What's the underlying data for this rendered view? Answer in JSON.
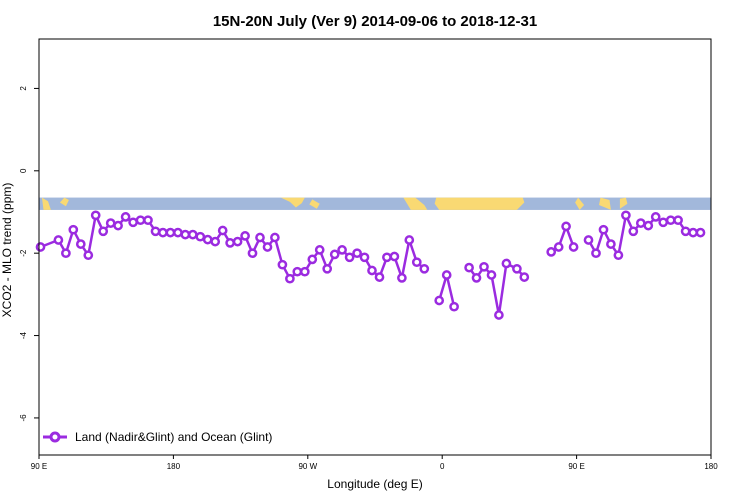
{
  "chart_data": {
    "type": "line",
    "title": "15N-20N July (Ver 9)   2014-09-06 to 2018-12-31",
    "xlabel": "Longitude (deg E)",
    "ylabel": "XCO2 - MLO trend (ppm)",
    "x_ticks": [
      {
        "value": 90,
        "label": "90 E"
      },
      {
        "value": 180,
        "label": "180"
      },
      {
        "value": 270,
        "label": "90 W"
      },
      {
        "value": 360,
        "label": "0"
      },
      {
        "value": 450,
        "label": "90 E"
      },
      {
        "value": 540,
        "label": "180"
      }
    ],
    "y_ticks": [
      2,
      0,
      -2,
      -4,
      -6
    ],
    "xlim": [
      90,
      540
    ],
    "ylim": [
      -6.9,
      3.2
    ],
    "grid": false,
    "legend_position": "bottom-left",
    "colors": {
      "series": "#9b2be0",
      "ocean": "#a2b8db",
      "land": "#f9d973"
    },
    "map_strip": {
      "y_top": -0.65,
      "y_bottom": -0.95
    },
    "series": [
      {
        "name": "Land (Nadir&Glint) and Ocean (Glint)",
        "segments": [
          [
            [
              91,
              -1.85
            ],
            [
              103,
              -1.68
            ],
            [
              108,
              -2.0
            ],
            [
              113,
              -1.43
            ],
            [
              118,
              -1.78
            ],
            [
              123,
              -2.05
            ],
            [
              128,
              -1.08
            ],
            [
              133,
              -1.47
            ],
            [
              138,
              -1.27
            ],
            [
              143,
              -1.33
            ],
            [
              148,
              -1.12
            ],
            [
              153,
              -1.25
            ],
            [
              158,
              -1.2
            ],
            [
              163,
              -1.2
            ],
            [
              168,
              -1.47
            ],
            [
              173,
              -1.5
            ],
            [
              178,
              -1.5
            ],
            [
              183,
              -1.5
            ],
            [
              188,
              -1.55
            ],
            [
              193,
              -1.55
            ],
            [
              198,
              -1.6
            ],
            [
              203,
              -1.67
            ],
            [
              208,
              -1.72
            ],
            [
              213,
              -1.45
            ],
            [
              218,
              -1.75
            ],
            [
              223,
              -1.72
            ],
            [
              228,
              -1.58
            ],
            [
              233,
              -2.0
            ],
            [
              238,
              -1.62
            ],
            [
              243,
              -1.85
            ],
            [
              248,
              -1.62
            ],
            [
              253,
              -2.28
            ],
            [
              258,
              -2.62
            ],
            [
              263,
              -2.45
            ],
            [
              268,
              -2.45
            ],
            [
              273,
              -2.15
            ],
            [
              278,
              -1.92
            ],
            [
              283,
              -2.38
            ],
            [
              288,
              -2.03
            ],
            [
              293,
              -1.92
            ],
            [
              298,
              -2.1
            ],
            [
              303,
              -2.0
            ],
            [
              308,
              -2.1
            ],
            [
              313,
              -2.42
            ],
            [
              318,
              -2.58
            ],
            [
              323,
              -2.1
            ],
            [
              328,
              -2.08
            ],
            [
              333,
              -2.6
            ],
            [
              338,
              -1.68
            ],
            [
              343,
              -2.22
            ],
            [
              348,
              -2.38
            ]
          ],
          [
            [
              358,
              -3.15
            ],
            [
              363,
              -2.53
            ],
            [
              368,
              -3.3
            ]
          ],
          [
            [
              378,
              -2.35
            ],
            [
              383,
              -2.6
            ],
            [
              388,
              -2.33
            ],
            [
              393,
              -2.53
            ],
            [
              398,
              -3.5
            ],
            [
              403,
              -2.25
            ],
            [
              410,
              -2.38
            ],
            [
              415,
              -2.58
            ]
          ],
          [
            [
              433,
              -1.97
            ],
            [
              438,
              -1.85
            ],
            [
              443,
              -1.35
            ],
            [
              448,
              -1.85
            ]
          ],
          [
            [
              458,
              -1.68
            ],
            [
              463,
              -2.0
            ],
            [
              468,
              -1.43
            ],
            [
              473,
              -1.78
            ],
            [
              478,
              -2.05
            ],
            [
              483,
              -1.08
            ],
            [
              488,
              -1.47
            ],
            [
              493,
              -1.27
            ],
            [
              498,
              -1.33
            ],
            [
              503,
              -1.12
            ],
            [
              508,
              -1.25
            ],
            [
              513,
              -1.2
            ],
            [
              518,
              -1.2
            ],
            [
              523,
              -1.47
            ],
            [
              528,
              -1.5
            ],
            [
              533,
              -1.5
            ]
          ]
        ]
      }
    ]
  }
}
